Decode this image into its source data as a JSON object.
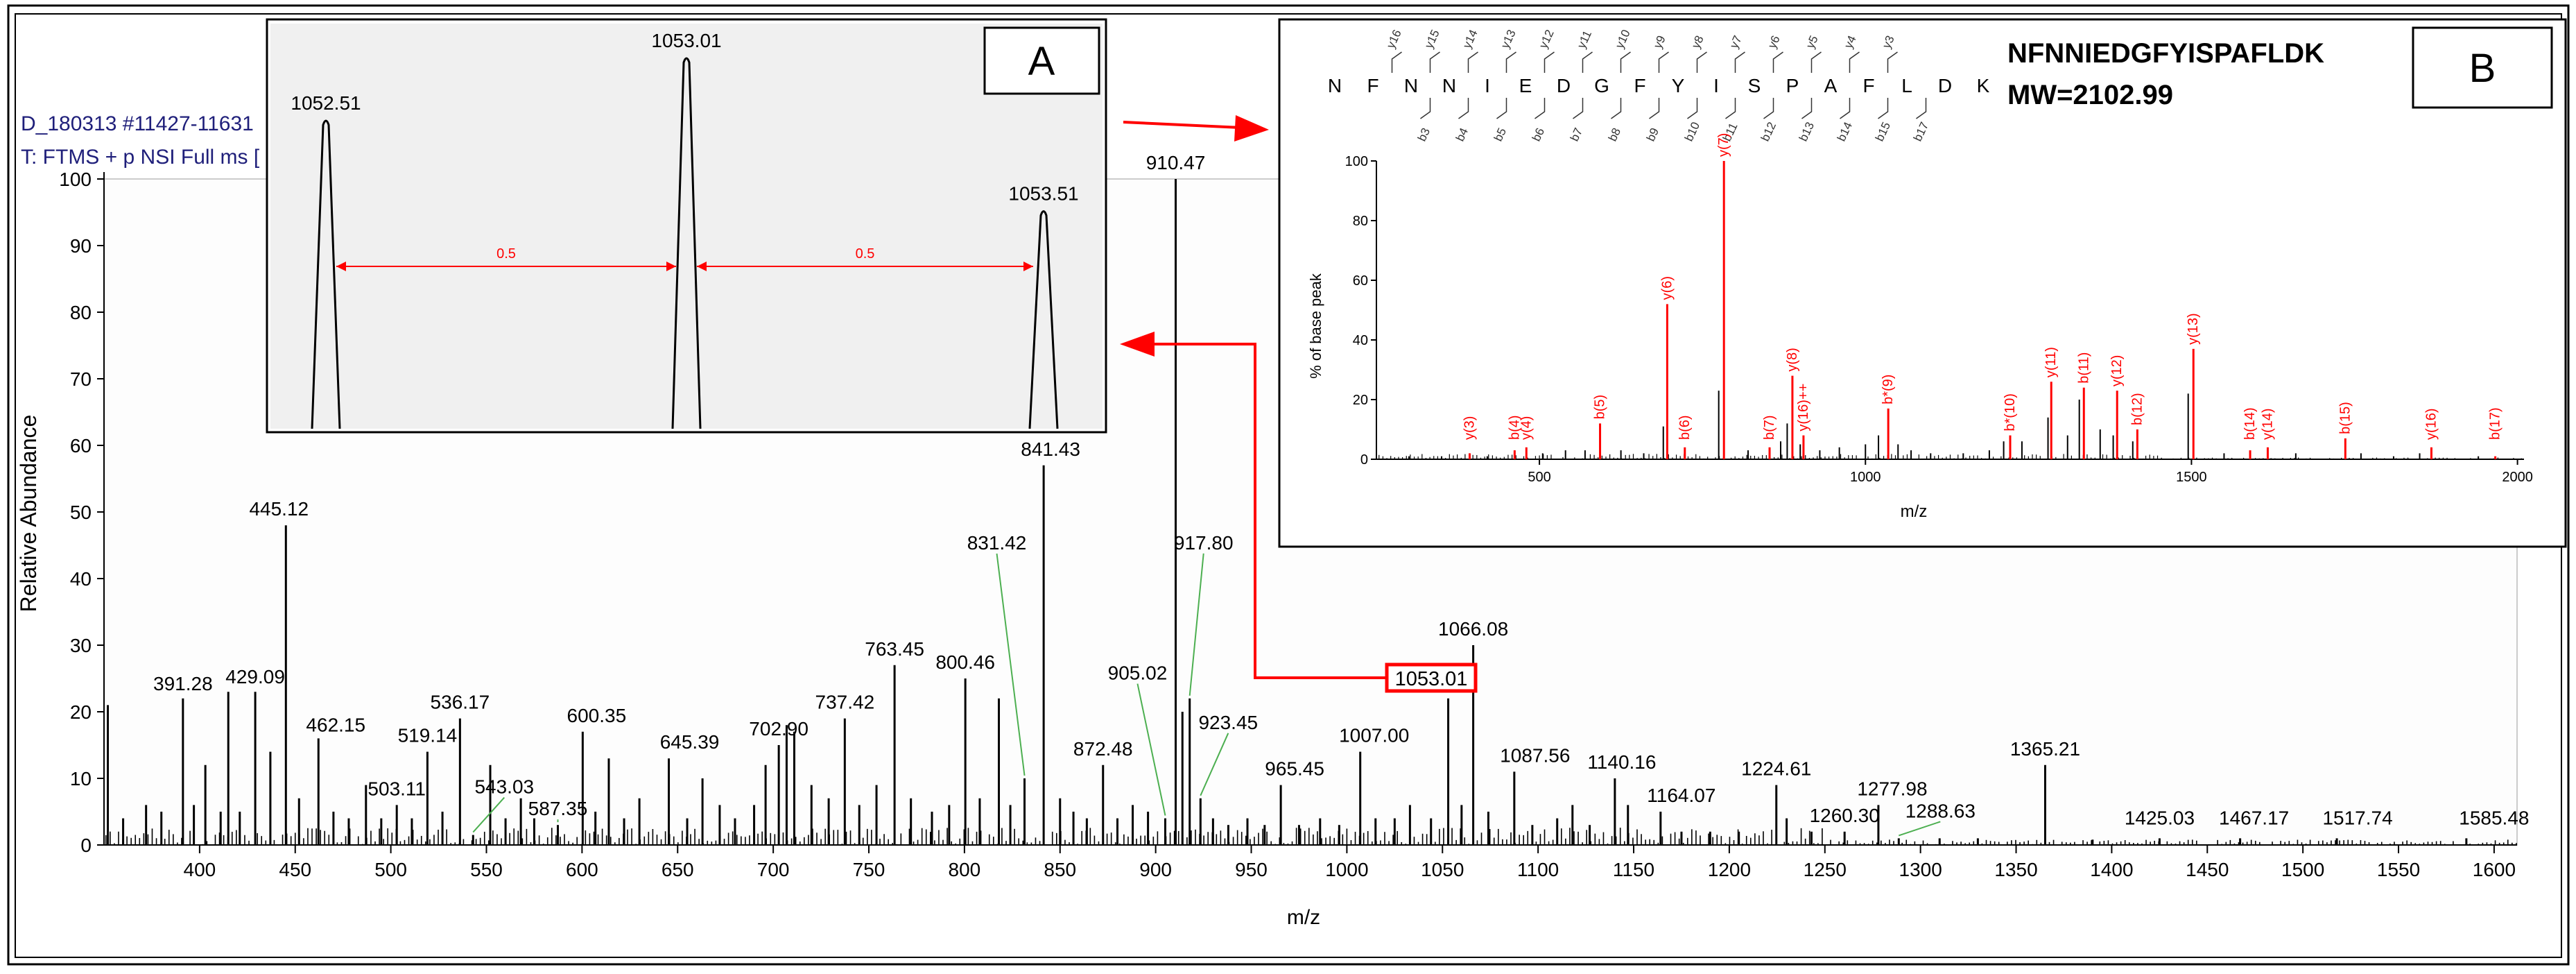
{
  "main_spectrum": {
    "header_line1": "D_180313 #11427-11631",
    "header_line2": "T: FTMS + p NSI Full ms [",
    "xlabel": "m/z",
    "ylabel": "Relative Abundance",
    "xlim": [
      350,
      1612
    ],
    "ylim": [
      0,
      100
    ],
    "xticks": [
      400,
      450,
      500,
      550,
      600,
      650,
      700,
      750,
      800,
      850,
      900,
      950,
      1000,
      1050,
      1100,
      1150,
      1200,
      1250,
      1300,
      1350,
      1400,
      1450,
      1500,
      1550,
      1600
    ],
    "yticks": [
      0,
      10,
      20,
      30,
      40,
      50,
      60,
      70,
      80,
      90,
      100
    ],
    "highlight_label": "1053.01",
    "peaks": [
      {
        "mz": 352,
        "h": 21
      },
      {
        "mz": 360,
        "h": 4
      },
      {
        "mz": 372,
        "h": 6
      },
      {
        "mz": 380,
        "h": 5
      },
      {
        "mz": 391.28,
        "h": 22,
        "label": "391.28"
      },
      {
        "mz": 397,
        "h": 6
      },
      {
        "mz": 403,
        "h": 12
      },
      {
        "mz": 411,
        "h": 5
      },
      {
        "mz": 415,
        "h": 23
      },
      {
        "mz": 421,
        "h": 5
      },
      {
        "mz": 429.09,
        "h": 23,
        "label": "429.09"
      },
      {
        "mz": 437,
        "h": 14
      },
      {
        "mz": 445.12,
        "h": 48,
        "label": "445.12"
      },
      {
        "mz": 452,
        "h": 7
      },
      {
        "mz": 462.15,
        "h": 16,
        "label": "462.15"
      },
      {
        "mz": 470,
        "h": 5
      },
      {
        "mz": 478,
        "h": 4
      },
      {
        "mz": 487,
        "h": 9
      },
      {
        "mz": 495,
        "h": 4
      },
      {
        "mz": 503.11,
        "h": 6,
        "label": "503.11"
      },
      {
        "mz": 511,
        "h": 4
      },
      {
        "mz": 519.14,
        "h": 14,
        "label": "519.14"
      },
      {
        "mz": 527,
        "h": 5
      },
      {
        "mz": 536.17,
        "h": 19,
        "label": "536.17"
      },
      {
        "mz": 543.03,
        "h": 1.5,
        "label": "543.03"
      },
      {
        "mz": 552,
        "h": 12
      },
      {
        "mz": 560,
        "h": 4
      },
      {
        "mz": 568,
        "h": 7
      },
      {
        "mz": 575,
        "h": 4
      },
      {
        "mz": 587.35,
        "h": 3,
        "label": "587.35"
      },
      {
        "mz": 600.35,
        "h": 17,
        "label": "600.35"
      },
      {
        "mz": 607,
        "h": 5
      },
      {
        "mz": 614,
        "h": 13
      },
      {
        "mz": 622,
        "h": 4
      },
      {
        "mz": 630,
        "h": 7
      },
      {
        "mz": 645.39,
        "h": 13,
        "label": "645.39"
      },
      {
        "mz": 655,
        "h": 4
      },
      {
        "mz": 663,
        "h": 10
      },
      {
        "mz": 672,
        "h": 6
      },
      {
        "mz": 680,
        "h": 4
      },
      {
        "mz": 690,
        "h": 6
      },
      {
        "mz": 696,
        "h": 12
      },
      {
        "mz": 702.9,
        "h": 15,
        "label": "702.90"
      },
      {
        "mz": 707,
        "h": 18
      },
      {
        "mz": 711,
        "h": 17
      },
      {
        "mz": 720,
        "h": 9
      },
      {
        "mz": 729,
        "h": 7
      },
      {
        "mz": 737.42,
        "h": 19,
        "label": "737.42"
      },
      {
        "mz": 745,
        "h": 6
      },
      {
        "mz": 754,
        "h": 9
      },
      {
        "mz": 763.45,
        "h": 27,
        "label": "763.45"
      },
      {
        "mz": 772,
        "h": 7
      },
      {
        "mz": 783,
        "h": 5
      },
      {
        "mz": 792,
        "h": 6
      },
      {
        "mz": 800.46,
        "h": 25,
        "label": "800.46"
      },
      {
        "mz": 808,
        "h": 7
      },
      {
        "mz": 818,
        "h": 22
      },
      {
        "mz": 824,
        "h": 6
      },
      {
        "mz": 831.42,
        "h": 10,
        "label": "831.42"
      },
      {
        "mz": 841.43,
        "h": 57,
        "label": "841.43"
      },
      {
        "mz": 850,
        "h": 7
      },
      {
        "mz": 857,
        "h": 5
      },
      {
        "mz": 864,
        "h": 4
      },
      {
        "mz": 872.48,
        "h": 12,
        "label": "872.48"
      },
      {
        "mz": 880,
        "h": 4
      },
      {
        "mz": 888,
        "h": 6
      },
      {
        "mz": 896,
        "h": 5
      },
      {
        "mz": 905.02,
        "h": 4,
        "label": "905.02"
      },
      {
        "mz": 910.47,
        "h": 100,
        "label": "910.47"
      },
      {
        "mz": 914,
        "h": 20
      },
      {
        "mz": 917.8,
        "h": 22,
        "label": "917.80"
      },
      {
        "mz": 923.45,
        "h": 7,
        "label": "923.45"
      },
      {
        "mz": 930,
        "h": 4
      },
      {
        "mz": 938,
        "h": 3
      },
      {
        "mz": 948,
        "h": 4
      },
      {
        "mz": 957,
        "h": 3
      },
      {
        "mz": 965.45,
        "h": 9,
        "label": "965.45"
      },
      {
        "mz": 975,
        "h": 3
      },
      {
        "mz": 986,
        "h": 4
      },
      {
        "mz": 996,
        "h": 3
      },
      {
        "mz": 1007.0,
        "h": 14,
        "label": "1007.00"
      },
      {
        "mz": 1015,
        "h": 4
      },
      {
        "mz": 1025,
        "h": 4
      },
      {
        "mz": 1033,
        "h": 6
      },
      {
        "mz": 1044,
        "h": 4
      },
      {
        "mz": 1053.01,
        "h": 22
      },
      {
        "mz": 1060,
        "h": 6
      },
      {
        "mz": 1066.08,
        "h": 30,
        "label": "1066.08"
      },
      {
        "mz": 1074,
        "h": 5
      },
      {
        "mz": 1087.56,
        "h": 11,
        "label": "1087.56"
      },
      {
        "mz": 1097,
        "h": 3
      },
      {
        "mz": 1110,
        "h": 4
      },
      {
        "mz": 1118,
        "h": 6
      },
      {
        "mz": 1127,
        "h": 3
      },
      {
        "mz": 1140.16,
        "h": 10,
        "label": "1140.16"
      },
      {
        "mz": 1147,
        "h": 6
      },
      {
        "mz": 1164.07,
        "h": 5,
        "label": "1164.07"
      },
      {
        "mz": 1175,
        "h": 2
      },
      {
        "mz": 1190,
        "h": 2
      },
      {
        "mz": 1205,
        "h": 2
      },
      {
        "mz": 1224.61,
        "h": 9,
        "label": "1224.61"
      },
      {
        "mz": 1230,
        "h": 4
      },
      {
        "mz": 1243,
        "h": 2
      },
      {
        "mz": 1260.3,
        "h": 2,
        "label": "1260.30"
      },
      {
        "mz": 1277.98,
        "h": 6,
        "label": "1277.98"
      },
      {
        "mz": 1288.63,
        "h": 1,
        "label": "1288.63"
      },
      {
        "mz": 1310,
        "h": 1
      },
      {
        "mz": 1330,
        "h": 1
      },
      {
        "mz": 1365.21,
        "h": 12,
        "label": "1365.21"
      },
      {
        "mz": 1390,
        "h": 0.8
      },
      {
        "mz": 1425.03,
        "h": 1,
        "label": "1425.03"
      },
      {
        "mz": 1467.17,
        "h": 1,
        "label": "1467.17"
      },
      {
        "mz": 1517.74,
        "h": 1,
        "label": "1517.74"
      },
      {
        "mz": 1585.48,
        "h": 1,
        "label": "1585.48"
      }
    ]
  },
  "inset_a": {
    "panel_label": "A",
    "peaks": [
      {
        "mz": 1052.51,
        "h": 100,
        "label": "1052.51"
      },
      {
        "mz": 1053.01,
        "h": 120,
        "label": "1053.01"
      },
      {
        "mz": 1053.51,
        "h": 71,
        "label": "1053.51"
      }
    ],
    "spacing_labels": [
      "0.5",
      "0.5"
    ]
  },
  "inset_b": {
    "panel_label": "B",
    "peptide": "NFNNIEDGFYISPAFLDK",
    "mw": "MW=2102.99",
    "sequence": [
      "N",
      "F",
      "N",
      "N",
      "I",
      "E",
      "D",
      "G",
      "F",
      "Y",
      "I",
      "S",
      "P",
      "A",
      "F",
      "L",
      "D",
      "K"
    ],
    "y_ions": [
      "y16",
      "y15",
      "y14",
      "y13",
      "y12",
      "y11",
      "y10",
      "y9",
      "y8",
      "y7",
      "y6",
      "y5",
      "y4",
      "y3"
    ],
    "b_ions": [
      "b3",
      "b4",
      "b5",
      "b6",
      "b7",
      "b8",
      "b9",
      "b10",
      "b11",
      "b12",
      "b13",
      "b14",
      "b15",
      "b17"
    ],
    "ylabel": "% of base peak",
    "xlabel": "m/z",
    "xlim": [
      250,
      2010
    ],
    "ylim": [
      0,
      100
    ],
    "xticks": [
      500,
      1000,
      1500,
      2000
    ],
    "yticks": [
      0,
      20,
      40,
      60,
      80,
      100
    ],
    "annotated": [
      {
        "mz": 393,
        "h": 2,
        "label": "y(3)"
      },
      {
        "mz": 462,
        "h": 3,
        "label": "b(4)"
      },
      {
        "mz": 480,
        "h": 4,
        "label": "y(4)"
      },
      {
        "mz": 593,
        "h": 12,
        "label": "b(5)"
      },
      {
        "mz": 696,
        "h": 52,
        "label": "y(6)"
      },
      {
        "mz": 723,
        "h": 4,
        "label": "b(6)"
      },
      {
        "mz": 783,
        "h": 100,
        "label": "y(7)"
      },
      {
        "mz": 853,
        "h": 4,
        "label": "b(7)"
      },
      {
        "mz": 888,
        "h": 28,
        "label": "y(8)"
      },
      {
        "mz": 905,
        "h": 8,
        "label": "y(16)++"
      },
      {
        "mz": 1035,
        "h": 17,
        "label": "b*(9)"
      },
      {
        "mz": 1222,
        "h": 8,
        "label": "b*(10)"
      },
      {
        "mz": 1285,
        "h": 26,
        "label": "y(11)"
      },
      {
        "mz": 1335,
        "h": 24,
        "label": "b(11)"
      },
      {
        "mz": 1386,
        "h": 23,
        "label": "y(12)"
      },
      {
        "mz": 1417,
        "h": 10,
        "label": "b(12)"
      },
      {
        "mz": 1503,
        "h": 37,
        "label": "y(13)"
      },
      {
        "mz": 1590,
        "h": 3,
        "label": "b(14)"
      },
      {
        "mz": 1617,
        "h": 4,
        "label": "y(14)"
      },
      {
        "mz": 1736,
        "h": 7,
        "label": "b(15)"
      },
      {
        "mz": 1868,
        "h": 4,
        "label": "y(16)"
      },
      {
        "mz": 1966,
        "h": 1,
        "label": "b(17)"
      }
    ],
    "unannotated": [
      {
        "mz": 300,
        "h": 1
      },
      {
        "mz": 350,
        "h": 1
      },
      {
        "mz": 420,
        "h": 1
      },
      {
        "mz": 505,
        "h": 2
      },
      {
        "mz": 540,
        "h": 3
      },
      {
        "mz": 570,
        "h": 3
      },
      {
        "mz": 625,
        "h": 3
      },
      {
        "mz": 660,
        "h": 2
      },
      {
        "mz": 690,
        "h": 11
      },
      {
        "mz": 775,
        "h": 23
      },
      {
        "mz": 820,
        "h": 3
      },
      {
        "mz": 870,
        "h": 6
      },
      {
        "mz": 880,
        "h": 12
      },
      {
        "mz": 900,
        "h": 5
      },
      {
        "mz": 930,
        "h": 3
      },
      {
        "mz": 960,
        "h": 4
      },
      {
        "mz": 1000,
        "h": 5
      },
      {
        "mz": 1020,
        "h": 8
      },
      {
        "mz": 1050,
        "h": 5
      },
      {
        "mz": 1070,
        "h": 3
      },
      {
        "mz": 1100,
        "h": 2
      },
      {
        "mz": 1150,
        "h": 2
      },
      {
        "mz": 1190,
        "h": 3
      },
      {
        "mz": 1212,
        "h": 6
      },
      {
        "mz": 1240,
        "h": 6
      },
      {
        "mz": 1280,
        "h": 14
      },
      {
        "mz": 1310,
        "h": 8
      },
      {
        "mz": 1328,
        "h": 20
      },
      {
        "mz": 1360,
        "h": 10
      },
      {
        "mz": 1380,
        "h": 8
      },
      {
        "mz": 1410,
        "h": 6
      },
      {
        "mz": 1495,
        "h": 22
      },
      {
        "mz": 1550,
        "h": 2
      },
      {
        "mz": 1660,
        "h": 2
      },
      {
        "mz": 1760,
        "h": 2
      },
      {
        "mz": 1810,
        "h": 1
      },
      {
        "mz": 1850,
        "h": 2
      },
      {
        "mz": 1940,
        "h": 1
      }
    ]
  },
  "colors": {
    "peak": "#000000",
    "annotation": "#ff0000",
    "leader": "#4caf50",
    "header": "#1f1f7a"
  }
}
